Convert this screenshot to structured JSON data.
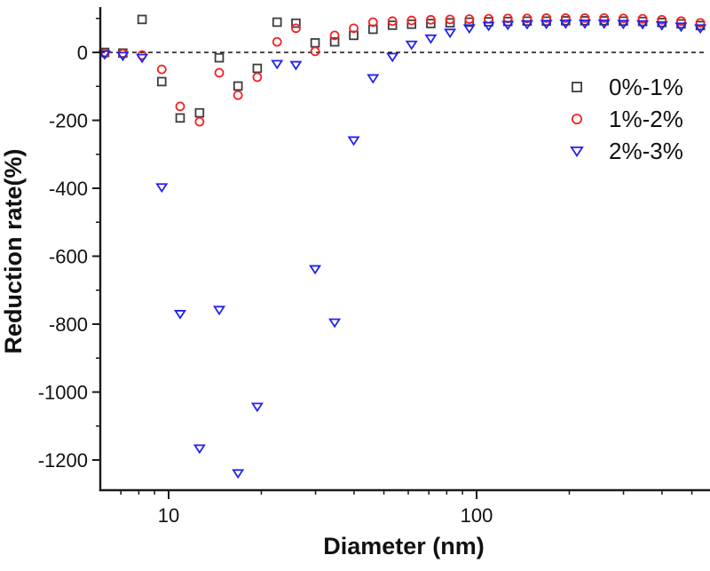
{
  "figure": {
    "background": "#ffffff",
    "axis_color": "#1a1a1a",
    "text_color": "#111111"
  },
  "chart_data": {
    "type": "scatter",
    "title": "",
    "xlabel": "Diameter (nm)",
    "ylabel": "Reduction rate(%)",
    "x_scale": "log",
    "xlim": [
      6,
      570
    ],
    "ylim": [
      -1290,
      133
    ],
    "grid": false,
    "legend_position": "upper-right-inside",
    "zero_line": {
      "y": 0,
      "style": "dashed",
      "color": "#111111"
    },
    "x": [
      6.2,
      7.1,
      8.2,
      9.5,
      10.9,
      12.6,
      14.6,
      16.8,
      19.4,
      22.5,
      25.9,
      29.9,
      34.6,
      39.9,
      46.1,
      53.3,
      61.5,
      71.0,
      82.0,
      94.7,
      109.4,
      126.3,
      145.9,
      168.5,
      194.6,
      224.7,
      259.5,
      299.6,
      346.0,
      399.5,
      461.4,
      532.8
    ],
    "series": [
      {
        "name": "0%-1%",
        "symbol": "square",
        "color": "#3d3d3d",
        "values": [
          0,
          -2,
          97,
          -86,
          -193,
          -178,
          -16,
          -99,
          -47,
          89,
          86,
          28,
          31,
          50,
          68,
          80,
          83,
          85,
          87,
          89,
          90,
          91,
          92,
          92,
          93,
          93,
          93,
          92,
          91,
          88,
          84,
          79
        ]
      },
      {
        "name": "1%-2%",
        "symbol": "circle",
        "color": "#f52222",
        "values": [
          -3,
          -4,
          -8,
          -50,
          -159,
          -204,
          -60,
          -126,
          -73,
          31,
          71,
          3,
          50,
          71,
          89,
          92,
          94,
          96,
          97,
          98,
          99,
          100,
          100,
          101,
          101,
          101,
          101,
          100,
          99,
          96,
          92,
          87
        ]
      },
      {
        "name": "2%-3%",
        "symbol": "triangle-down",
        "color": "#2222f0",
        "values": [
          -6,
          -10,
          -16,
          -397,
          -770,
          -1166,
          -758,
          -1239,
          -1043,
          -34,
          -37,
          -638,
          -795,
          -259,
          -76,
          -13,
          23,
          41,
          58,
          71,
          78,
          81,
          83,
          84,
          85,
          85,
          85,
          84,
          83,
          80,
          76,
          71
        ]
      }
    ],
    "axes": {
      "x_major_ticks": [
        10,
        100
      ],
      "x_major_tick_labels": [
        "10",
        "100"
      ],
      "x_minor_ticks": [
        7,
        8,
        9,
        20,
        30,
        40,
        50,
        60,
        70,
        80,
        90,
        200,
        300,
        400,
        500
      ],
      "y_major_ticks": [
        0,
        -200,
        -400,
        -600,
        -800,
        -1000,
        -1200
      ],
      "y_major_tick_labels": [
        "0",
        "-200",
        "-400",
        "-600",
        "-800",
        "-1000",
        "-1200"
      ],
      "y_minor_ticks": [
        100,
        -100,
        -300,
        -500,
        -700,
        -900,
        -1100
      ]
    }
  }
}
